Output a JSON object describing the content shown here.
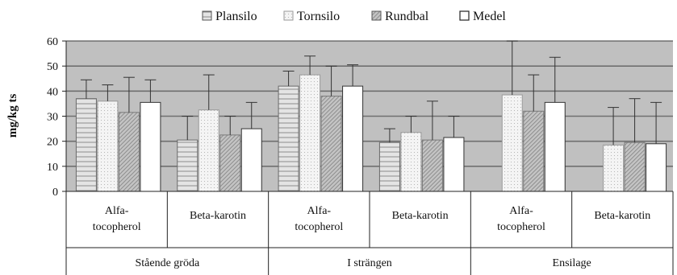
{
  "chart_data": {
    "type": "bar",
    "ylabel": "mg/kg ts",
    "ylim": [
      0,
      60
    ],
    "yticks": [
      0,
      10,
      20,
      30,
      40,
      50,
      60
    ],
    "grid": true,
    "legend_position": "top-center",
    "series": [
      {
        "name": "Plansilo",
        "values": [
          37,
          20.5,
          42,
          19.5,
          null,
          null
        ],
        "errors": [
          7.5,
          9.5,
          6,
          5.5,
          null,
          null
        ]
      },
      {
        "name": "Tornsilo",
        "values": [
          36,
          32.5,
          46.5,
          23.5,
          38.5,
          18.5
        ],
        "errors": [
          6.5,
          14,
          7.5,
          6.5,
          21.5,
          15
        ]
      },
      {
        "name": "Rundbal",
        "values": [
          31.5,
          22.5,
          38,
          20.5,
          32,
          19.5
        ],
        "errors": [
          14,
          7.5,
          12,
          15.5,
          14.5,
          17.5
        ]
      },
      {
        "name": "Medel",
        "values": [
          35.5,
          25,
          42,
          21.5,
          35.5,
          19
        ],
        "errors": [
          9,
          10.5,
          8.5,
          8.5,
          18,
          16.5
        ]
      }
    ],
    "groups": [
      {
        "label": "Stående gröda",
        "subcategories": [
          "Alfa-\ntocopherol",
          "Beta-karotin"
        ]
      },
      {
        "label": "I strängen",
        "subcategories": [
          "Alfa-\ntocopherol",
          "Beta-karotin"
        ]
      },
      {
        "label": "Ensilage",
        "subcategories": [
          "Alfa-\ntocopherol",
          "Beta-karotin"
        ]
      }
    ]
  },
  "colors": {
    "plot_background": "#c0c0c0",
    "gridline": "#6f6f6f",
    "plansilo_fill": "#e0e0e0",
    "tornsilo_fill": "#eeeeee",
    "rundbal_fill": "#b8b8b8",
    "medel_fill": "#ffffff"
  }
}
